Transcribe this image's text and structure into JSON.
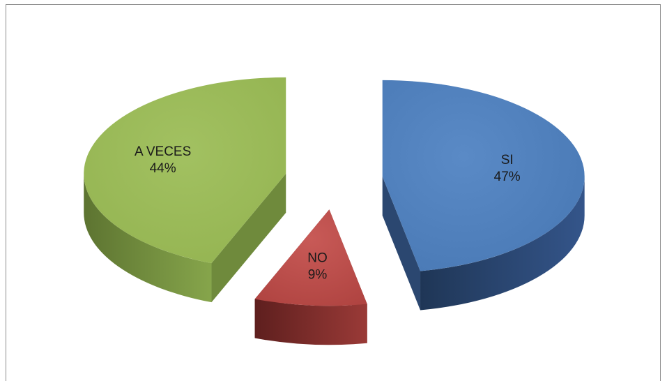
{
  "chart_data": {
    "type": "pie",
    "title": "",
    "slices": [
      {
        "label": "SI",
        "value": 47,
        "display": "47%",
        "color": "#4f81bd",
        "side_color": "#2b4770"
      },
      {
        "label": "NO",
        "value": 9,
        "display": "9%",
        "color": "#c0504d",
        "side_color": "#7a2a28"
      },
      {
        "label": "A VECES",
        "value": 44,
        "display": "44%",
        "color": "#9bbb59",
        "side_color": "#6f8a3c"
      }
    ],
    "legend": false,
    "style": "3d-exploded"
  }
}
